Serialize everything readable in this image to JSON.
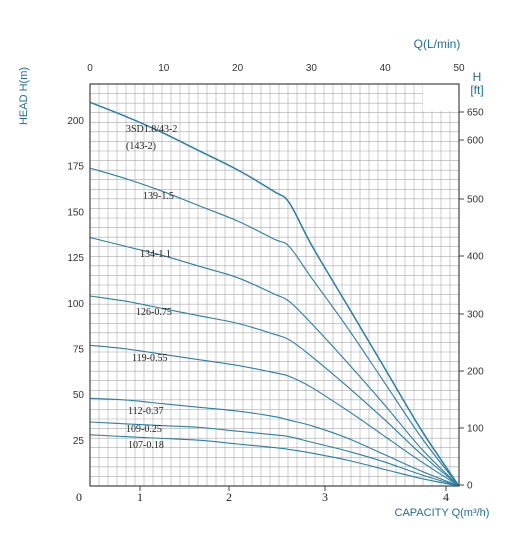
{
  "chart_data": {
    "type": "line",
    "title": "",
    "axes": {
      "y_left": {
        "label": "HEAD H(m)",
        "ticks": [
          25,
          50,
          75,
          100,
          125,
          150,
          175,
          200
        ],
        "range": [
          0,
          220
        ]
      },
      "y_right": {
        "label_top": "H",
        "label_unit": "[ft]",
        "ticks": [
          0,
          100,
          200,
          300,
          400,
          500,
          600,
          650
        ]
      },
      "x_top": {
        "label": "Q(L/min)",
        "ticks": [
          0,
          10,
          20,
          30,
          40,
          50
        ],
        "range": [
          0,
          50
        ]
      },
      "x_bottom": {
        "label": "CAPACITY Q(m³/h)",
        "ticks": [
          0,
          1,
          2,
          3,
          4
        ]
      },
      "grid": true
    },
    "colors": {
      "line": "#2a7fa6",
      "grid": "#aaaaaa",
      "frame": "#444444",
      "axis_text": "#1f6f96"
    },
    "series": [
      {
        "name": "3SD1.8/43-2",
        "label2": "(143-2)",
        "x": [
          0,
          5,
          10,
          15,
          20,
          25,
          27,
          30,
          35,
          40,
          45,
          50
        ],
        "y": [
          210,
          202,
          193,
          183,
          173,
          161,
          155,
          132,
          98,
          64,
          30,
          0
        ]
      },
      {
        "name": "139-1.5",
        "x": [
          0,
          5,
          10,
          15,
          20,
          25,
          27,
          30,
          35,
          40,
          45,
          50
        ],
        "y": [
          174,
          168,
          161,
          153,
          145,
          135,
          131,
          114,
          86,
          56,
          26,
          0
        ]
      },
      {
        "name": "134-1.1",
        "x": [
          0,
          5,
          10,
          15,
          20,
          25,
          27,
          30,
          35,
          40,
          45,
          50
        ],
        "y": [
          136,
          131,
          126,
          120,
          114,
          105,
          101,
          89,
          67,
          44,
          20,
          0
        ]
      },
      {
        "name": "126-0.75",
        "x": [
          0,
          5,
          10,
          15,
          20,
          25,
          27,
          30,
          35,
          40,
          45,
          50
        ],
        "y": [
          104,
          101,
          97,
          93,
          89,
          83,
          80,
          71,
          54,
          36,
          17,
          0
        ]
      },
      {
        "name": "119-0.55",
        "x": [
          0,
          5,
          10,
          15,
          20,
          25,
          27,
          30,
          35,
          40,
          45,
          50
        ],
        "y": [
          77,
          75,
          72,
          69,
          66,
          62,
          60,
          54,
          41,
          27,
          13,
          0
        ]
      },
      {
        "name": "112-0.37",
        "x": [
          0,
          5,
          10,
          15,
          20,
          25,
          27,
          30,
          35,
          40,
          45,
          50
        ],
        "y": [
          48,
          47,
          45,
          43,
          41,
          38,
          36,
          33,
          26,
          17,
          8,
          0
        ]
      },
      {
        "name": "109-0.25",
        "x": [
          0,
          5,
          10,
          15,
          20,
          25,
          27,
          30,
          35,
          40,
          45,
          50
        ],
        "y": [
          35,
          34,
          33,
          32,
          30,
          28,
          27,
          24,
          19,
          13,
          6,
          0
        ]
      },
      {
        "name": "107-0.18",
        "x": [
          0,
          5,
          10,
          15,
          20,
          25,
          27,
          30,
          35,
          40,
          45,
          50
        ],
        "y": [
          28,
          27,
          26,
          25,
          23,
          21,
          20,
          18,
          14,
          9,
          4,
          0
        ]
      }
    ]
  }
}
